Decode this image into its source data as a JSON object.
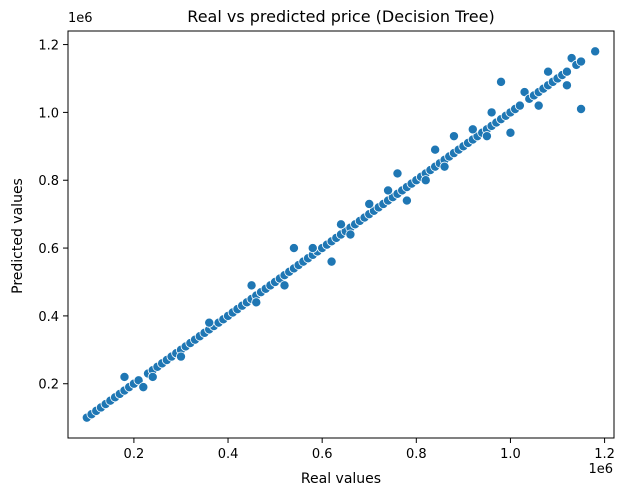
{
  "chart_data": {
    "type": "scatter",
    "title": "Real vs predicted price (Decision Tree)",
    "xlabel": "Real values",
    "ylabel": "Predicted values",
    "x_offset_label": "1e6",
    "y_offset_label": "1e6",
    "xlim": [
      0.06,
      1.22
    ],
    "ylim": [
      0.04,
      1.24
    ],
    "xticks": [
      0.2,
      0.4,
      0.6,
      0.8,
      1.0,
      1.2
    ],
    "xtick_labels": [
      "0.2",
      "0.4",
      "0.6",
      "0.8",
      "1.0",
      "1.2"
    ],
    "yticks": [
      0.2,
      0.4,
      0.6,
      0.8,
      1.0,
      1.2
    ],
    "ytick_labels": [
      "0.2",
      "0.4",
      "0.6",
      "0.8",
      "1.0",
      "1.2"
    ],
    "grid": false,
    "marker_color": "#1f77b4",
    "marker_edge": "#ffffff",
    "points": [
      [
        0.1,
        0.1
      ],
      [
        0.11,
        0.11
      ],
      [
        0.12,
        0.12
      ],
      [
        0.13,
        0.13
      ],
      [
        0.14,
        0.14
      ],
      [
        0.15,
        0.15
      ],
      [
        0.16,
        0.16
      ],
      [
        0.17,
        0.17
      ],
      [
        0.18,
        0.22
      ],
      [
        0.18,
        0.18
      ],
      [
        0.19,
        0.19
      ],
      [
        0.2,
        0.2
      ],
      [
        0.21,
        0.21
      ],
      [
        0.22,
        0.19
      ],
      [
        0.23,
        0.23
      ],
      [
        0.24,
        0.24
      ],
      [
        0.25,
        0.25
      ],
      [
        0.26,
        0.26
      ],
      [
        0.27,
        0.27
      ],
      [
        0.28,
        0.28
      ],
      [
        0.29,
        0.29
      ],
      [
        0.3,
        0.3
      ],
      [
        0.31,
        0.31
      ],
      [
        0.32,
        0.32
      ],
      [
        0.33,
        0.33
      ],
      [
        0.34,
        0.34
      ],
      [
        0.35,
        0.35
      ],
      [
        0.36,
        0.36
      ],
      [
        0.37,
        0.37
      ],
      [
        0.38,
        0.38
      ],
      [
        0.39,
        0.39
      ],
      [
        0.4,
        0.4
      ],
      [
        0.41,
        0.41
      ],
      [
        0.42,
        0.42
      ],
      [
        0.43,
        0.43
      ],
      [
        0.44,
        0.44
      ],
      [
        0.45,
        0.49
      ],
      [
        0.45,
        0.45
      ],
      [
        0.46,
        0.46
      ],
      [
        0.47,
        0.47
      ],
      [
        0.48,
        0.48
      ],
      [
        0.49,
        0.49
      ],
      [
        0.5,
        0.5
      ],
      [
        0.51,
        0.51
      ],
      [
        0.52,
        0.52
      ],
      [
        0.53,
        0.53
      ],
      [
        0.54,
        0.6
      ],
      [
        0.54,
        0.54
      ],
      [
        0.55,
        0.55
      ],
      [
        0.56,
        0.56
      ],
      [
        0.57,
        0.57
      ],
      [
        0.58,
        0.58
      ],
      [
        0.59,
        0.59
      ],
      [
        0.6,
        0.6
      ],
      [
        0.61,
        0.61
      ],
      [
        0.62,
        0.56
      ],
      [
        0.62,
        0.62
      ],
      [
        0.63,
        0.63
      ],
      [
        0.64,
        0.64
      ],
      [
        0.65,
        0.65
      ],
      [
        0.66,
        0.66
      ],
      [
        0.67,
        0.67
      ],
      [
        0.68,
        0.68
      ],
      [
        0.69,
        0.69
      ],
      [
        0.7,
        0.7
      ],
      [
        0.71,
        0.71
      ],
      [
        0.72,
        0.72
      ],
      [
        0.73,
        0.73
      ],
      [
        0.74,
        0.74
      ],
      [
        0.75,
        0.75
      ],
      [
        0.76,
        0.82
      ],
      [
        0.76,
        0.76
      ],
      [
        0.77,
        0.77
      ],
      [
        0.78,
        0.78
      ],
      [
        0.79,
        0.79
      ],
      [
        0.8,
        0.8
      ],
      [
        0.81,
        0.81
      ],
      [
        0.82,
        0.82
      ],
      [
        0.83,
        0.83
      ],
      [
        0.84,
        0.89
      ],
      [
        0.84,
        0.84
      ],
      [
        0.85,
        0.85
      ],
      [
        0.86,
        0.86
      ],
      [
        0.87,
        0.87
      ],
      [
        0.88,
        0.88
      ],
      [
        0.89,
        0.89
      ],
      [
        0.9,
        0.9
      ],
      [
        0.91,
        0.91
      ],
      [
        0.92,
        0.92
      ],
      [
        0.93,
        0.93
      ],
      [
        0.94,
        0.94
      ],
      [
        0.95,
        0.95
      ],
      [
        0.96,
        0.96
      ],
      [
        0.97,
        0.97
      ],
      [
        0.98,
        1.09
      ],
      [
        0.98,
        0.98
      ],
      [
        0.99,
        0.99
      ],
      [
        1.0,
        0.94
      ],
      [
        1.0,
        1.0
      ],
      [
        1.01,
        1.01
      ],
      [
        1.02,
        1.02
      ],
      [
        1.03,
        1.06
      ],
      [
        1.04,
        1.04
      ],
      [
        1.05,
        1.05
      ],
      [
        1.06,
        1.06
      ],
      [
        1.07,
        1.07
      ],
      [
        1.08,
        1.08
      ],
      [
        1.09,
        1.09
      ],
      [
        1.1,
        1.1
      ],
      [
        1.11,
        1.11
      ],
      [
        1.12,
        1.12
      ],
      [
        1.13,
        1.16
      ],
      [
        1.14,
        1.14
      ],
      [
        1.15,
        1.01
      ],
      [
        1.15,
        1.15
      ],
      [
        1.18,
        1.18
      ],
      [
        0.78,
        0.74
      ],
      [
        0.88,
        0.93
      ],
      [
        0.95,
        0.93
      ],
      [
        1.06,
        1.02
      ],
      [
        0.7,
        0.73
      ],
      [
        0.66,
        0.64
      ],
      [
        0.58,
        0.6
      ],
      [
        0.36,
        0.38
      ],
      [
        0.24,
        0.22
      ],
      [
        0.3,
        0.28
      ],
      [
        0.52,
        0.49
      ],
      [
        0.74,
        0.77
      ],
      [
        0.86,
        0.84
      ],
      [
        0.92,
        0.95
      ],
      [
        0.96,
        1.0
      ],
      [
        1.08,
        1.12
      ],
      [
        1.12,
        1.08
      ],
      [
        0.82,
        0.8
      ],
      [
        0.64,
        0.67
      ],
      [
        0.46,
        0.44
      ]
    ]
  }
}
